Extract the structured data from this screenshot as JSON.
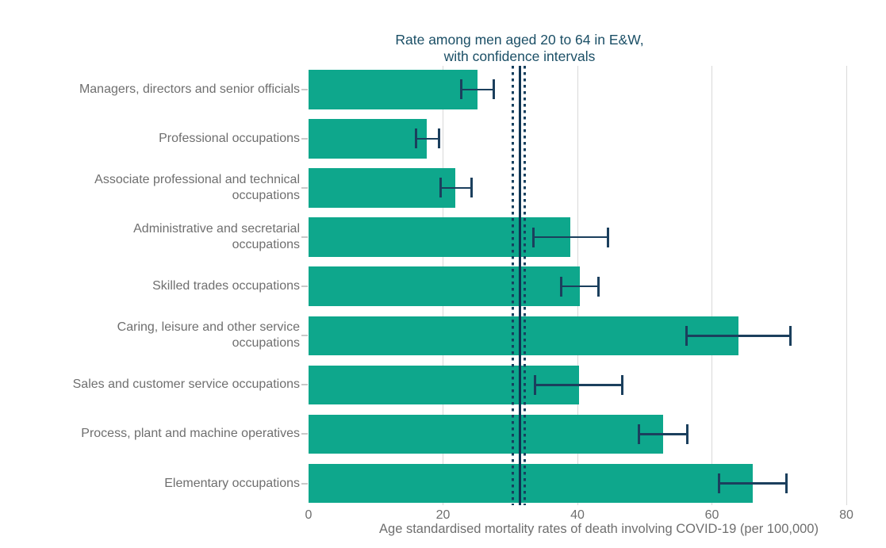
{
  "chart_data": {
    "type": "bar",
    "orientation": "horizontal",
    "title_lines": [
      "Rate among men aged 20 to 64 in E&W,",
      "with confidence intervals"
    ],
    "xlabel": "Age standardised mortality rates of death involving COVID-19 (per 100,000)",
    "xlim": [
      0,
      80
    ],
    "xticks": [
      0,
      20,
      40,
      60,
      80
    ],
    "grid": "vertical",
    "legend": "none",
    "categories": [
      "Managers, directors and senior officials",
      "Professional occupations",
      "Associate professional and technical occupations",
      "Administrative and secretarial occupations",
      "Skilled trades occupations",
      "Caring, leisure and other service occupations",
      "Sales and customer service occupations",
      "Process, plant and machine operatives",
      "Elementary occupations"
    ],
    "values": [
      25.1,
      17.6,
      21.8,
      38.9,
      40.4,
      64.0,
      40.2,
      52.7,
      66.1
    ],
    "ci_low": [
      22.7,
      16.0,
      19.6,
      33.4,
      37.6,
      56.2,
      33.7,
      49.1,
      61.1
    ],
    "ci_high": [
      27.5,
      19.4,
      24.2,
      44.6,
      43.1,
      71.7,
      46.7,
      56.3,
      71.1
    ],
    "reference_line": {
      "value": 31.4,
      "ci_low": 30.4,
      "ci_high": 32.2
    },
    "colors": {
      "bar": "#0ea78c",
      "error": "#1b3f5d",
      "reference_solid": "#0d3452",
      "reference_dotted": "#16405f",
      "grid": "#d9d9d9",
      "tick": "#c9c9c9",
      "label_text": "#6f6f6f",
      "title_text": "#1b4f66"
    }
  }
}
